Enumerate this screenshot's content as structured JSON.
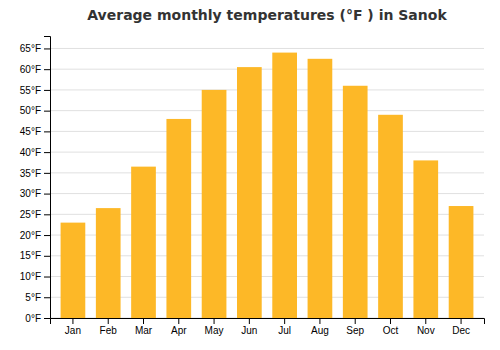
{
  "chart_data": {
    "type": "bar",
    "title": "Average monthly temperatures (°F ) in Sanok",
    "categories": [
      "Jan",
      "Feb",
      "Mar",
      "Apr",
      "May",
      "Jun",
      "Jul",
      "Aug",
      "Sep",
      "Oct",
      "Nov",
      "Dec"
    ],
    "values": [
      23,
      26.5,
      36.5,
      48,
      55,
      60.5,
      64,
      62.5,
      56,
      49,
      38,
      27
    ],
    "color": "#FDB827",
    "ylim": [
      0,
      68
    ],
    "yticks": [
      {
        "value": 0,
        "label": "0°F"
      },
      {
        "value": 5,
        "label": "5°F"
      },
      {
        "value": 10,
        "label": "10°F"
      },
      {
        "value": 15,
        "label": "15°F"
      },
      {
        "value": 20,
        "label": "20°F"
      },
      {
        "value": 25,
        "label": "25°F"
      },
      {
        "value": 30,
        "label": "30°F"
      },
      {
        "value": 35,
        "label": "35°F"
      },
      {
        "value": 40,
        "label": "40°F"
      },
      {
        "value": 45,
        "label": "45°F"
      },
      {
        "value": 50,
        "label": "50°F"
      },
      {
        "value": 55,
        "label": "55°F"
      },
      {
        "value": 60,
        "label": "60°F"
      },
      {
        "value": 65,
        "label": "65°F"
      }
    ],
    "grid": true
  }
}
